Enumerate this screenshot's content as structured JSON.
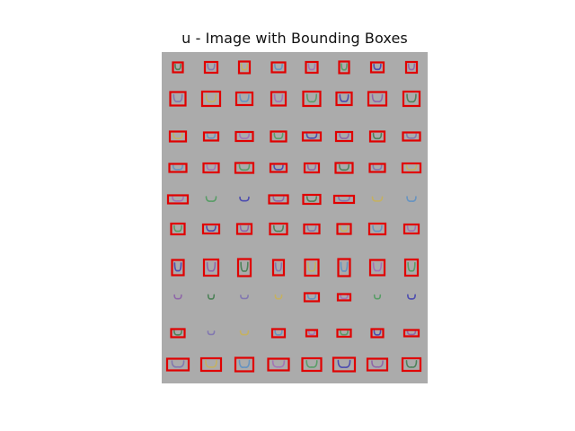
{
  "figure": {
    "title": "u - Image with Bounding Boxes"
  },
  "grid": {
    "rows": 10,
    "cols": 8,
    "box_color": "#e00000",
    "panel_color": "#ababab",
    "glyph": "u",
    "stroke_colors": [
      "#3d7a4a",
      "#7a6fb0",
      "#c9b255",
      "#5a8fc4",
      "#a06ab8",
      "#4a9a5a",
      "#3b3bb0",
      "#8a5aa8"
    ],
    "boxed_flags": [
      [
        1,
        1,
        1,
        1,
        1,
        1,
        1,
        1
      ],
      [
        1,
        1,
        1,
        1,
        1,
        1,
        1,
        1
      ],
      [
        1,
        1,
        1,
        1,
        1,
        1,
        1,
        1
      ],
      [
        1,
        1,
        1,
        1,
        1,
        1,
        1,
        1
      ],
      [
        1,
        0,
        0,
        1,
        1,
        1,
        0,
        0
      ],
      [
        1,
        1,
        1,
        1,
        1,
        1,
        1,
        1
      ],
      [
        1,
        1,
        1,
        1,
        1,
        1,
        1,
        1
      ],
      [
        0,
        0,
        0,
        0,
        1,
        1,
        0,
        0
      ],
      [
        1,
        0,
        0,
        1,
        1,
        1,
        1,
        1
      ],
      [
        1,
        1,
        1,
        1,
        1,
        1,
        1,
        1
      ]
    ]
  }
}
